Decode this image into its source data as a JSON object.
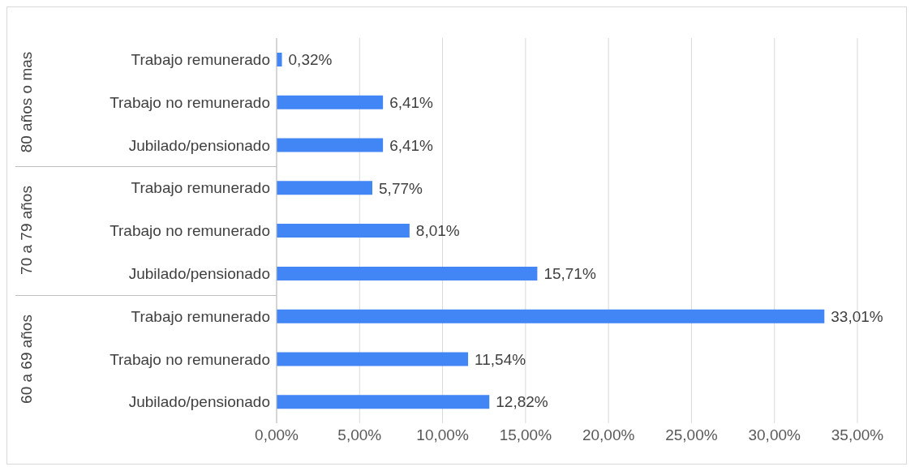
{
  "chart_data": {
    "type": "bar",
    "orientation": "horizontal",
    "categories": [
      "Trabajo remunerado",
      "Trabajo no remunerado",
      "Jubilado/pensionado",
      "Trabajo remunerado",
      "Trabajo no remunerado",
      "Jubilado/pensionado",
      "Trabajo remunerado",
      "Trabajo no remunerado",
      "Jubilado/pensionado"
    ],
    "values": [
      0.32,
      6.41,
      6.41,
      5.77,
      8.01,
      15.71,
      33.01,
      11.54,
      12.82
    ],
    "value_labels": [
      "0,32%",
      "6,41%",
      "6,41%",
      "5,77%",
      "8,01%",
      "15,71%",
      "33,01%",
      "11,54%",
      "12,82%"
    ],
    "color": "#4285f4",
    "xlim": [
      0,
      35
    ],
    "xticks": [
      {
        "value": 0,
        "label": "0,00%"
      },
      {
        "value": 5,
        "label": "5,00%"
      },
      {
        "value": 10,
        "label": "10,00%"
      },
      {
        "value": 15,
        "label": "15,00%"
      },
      {
        "value": 20,
        "label": "20,00%"
      },
      {
        "value": 25,
        "label": "25,00%"
      },
      {
        "value": 30,
        "label": "30,00%"
      },
      {
        "value": 35,
        "label": "35,00%"
      }
    ],
    "annotations": [
      "80 años o mas",
      "70 a 79 años",
      "60 a 69 años"
    ],
    "grid": "x"
  }
}
